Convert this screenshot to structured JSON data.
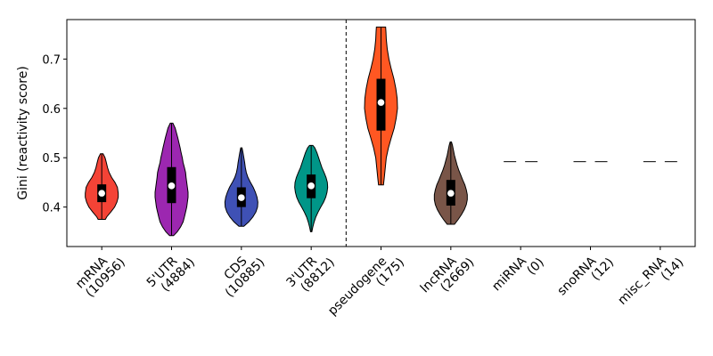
{
  "chart_data": {
    "type": "violin",
    "title": "",
    "xlabel": "",
    "ylabel": "Gini (reactivity score)",
    "ylim": [
      0.32,
      0.78
    ],
    "yticks": [
      0.4,
      0.5,
      0.6,
      0.7
    ],
    "ytick_labels": [
      "0.4",
      "0.5",
      "0.6",
      "0.7"
    ],
    "grid": false,
    "legend": "none",
    "separator_after_index": 3,
    "categories": [
      {
        "name": "mRNA",
        "count": "(10956)",
        "color": "#f44336",
        "kind": "violin",
        "min": 0.375,
        "q1": 0.41,
        "median": 0.428,
        "q3": 0.446,
        "max": 0.508,
        "profile": [
          [
            0.375,
            0.22
          ],
          [
            0.38,
            0.3
          ],
          [
            0.39,
            0.55
          ],
          [
            0.4,
            0.78
          ],
          [
            0.41,
            0.92
          ],
          [
            0.42,
            1.0
          ],
          [
            0.428,
            1.0
          ],
          [
            0.44,
            0.95
          ],
          [
            0.45,
            0.8
          ],
          [
            0.46,
            0.6
          ],
          [
            0.47,
            0.45
          ],
          [
            0.48,
            0.35
          ],
          [
            0.49,
            0.28
          ],
          [
            0.5,
            0.2
          ],
          [
            0.508,
            0.08
          ]
        ]
      },
      {
        "name": "5'UTR",
        "count": "(4884)",
        "color": "#9c27b0",
        "kind": "violin",
        "min": 0.342,
        "q1": 0.408,
        "median": 0.443,
        "q3": 0.481,
        "max": 0.57,
        "profile": [
          [
            0.342,
            0.12
          ],
          [
            0.35,
            0.35
          ],
          [
            0.36,
            0.55
          ],
          [
            0.37,
            0.7
          ],
          [
            0.38,
            0.78
          ],
          [
            0.39,
            0.85
          ],
          [
            0.4,
            0.92
          ],
          [
            0.41,
            0.96
          ],
          [
            0.42,
            1.0
          ],
          [
            0.43,
            1.0
          ],
          [
            0.44,
            0.96
          ],
          [
            0.45,
            0.92
          ],
          [
            0.46,
            0.88
          ],
          [
            0.47,
            0.85
          ],
          [
            0.48,
            0.78
          ],
          [
            0.49,
            0.7
          ],
          [
            0.5,
            0.65
          ],
          [
            0.51,
            0.58
          ],
          [
            0.52,
            0.52
          ],
          [
            0.53,
            0.45
          ],
          [
            0.54,
            0.38
          ],
          [
            0.55,
            0.3
          ],
          [
            0.56,
            0.22
          ],
          [
            0.57,
            0.08
          ]
        ]
      },
      {
        "name": "CDS",
        "count": "(10885)",
        "color": "#3f51b5",
        "kind": "violin",
        "min": 0.361,
        "q1": 0.4,
        "median": 0.419,
        "q3": 0.44,
        "max": 0.52,
        "profile": [
          [
            0.361,
            0.15
          ],
          [
            0.37,
            0.45
          ],
          [
            0.38,
            0.7
          ],
          [
            0.39,
            0.88
          ],
          [
            0.4,
            0.98
          ],
          [
            0.41,
            1.0
          ],
          [
            0.42,
            0.95
          ],
          [
            0.43,
            0.85
          ],
          [
            0.44,
            0.72
          ],
          [
            0.45,
            0.55
          ],
          [
            0.46,
            0.4
          ],
          [
            0.47,
            0.3
          ],
          [
            0.48,
            0.24
          ],
          [
            0.49,
            0.2
          ],
          [
            0.5,
            0.15
          ],
          [
            0.51,
            0.1
          ],
          [
            0.52,
            0.04
          ]
        ]
      },
      {
        "name": "3'UTR",
        "count": "(8812)",
        "color": "#009688",
        "kind": "violin",
        "min": 0.35,
        "q1": 0.418,
        "median": 0.443,
        "q3": 0.466,
        "max": 0.525,
        "profile": [
          [
            0.35,
            0.04
          ],
          [
            0.36,
            0.1
          ],
          [
            0.37,
            0.18
          ],
          [
            0.38,
            0.28
          ],
          [
            0.39,
            0.42
          ],
          [
            0.4,
            0.58
          ],
          [
            0.41,
            0.75
          ],
          [
            0.42,
            0.88
          ],
          [
            0.43,
            0.96
          ],
          [
            0.44,
            1.0
          ],
          [
            0.45,
            0.98
          ],
          [
            0.46,
            0.9
          ],
          [
            0.47,
            0.78
          ],
          [
            0.48,
            0.65
          ],
          [
            0.49,
            0.55
          ],
          [
            0.5,
            0.45
          ],
          [
            0.51,
            0.35
          ],
          [
            0.52,
            0.22
          ],
          [
            0.525,
            0.1
          ]
        ]
      },
      {
        "name": "pseudogene",
        "count": "(175)",
        "color": "#ff5722",
        "kind": "violin",
        "min": 0.445,
        "q1": 0.555,
        "median": 0.612,
        "q3": 0.66,
        "max": 0.765,
        "profile": [
          [
            0.445,
            0.15
          ],
          [
            0.46,
            0.2
          ],
          [
            0.48,
            0.26
          ],
          [
            0.5,
            0.32
          ],
          [
            0.52,
            0.45
          ],
          [
            0.54,
            0.62
          ],
          [
            0.56,
            0.8
          ],
          [
            0.58,
            0.92
          ],
          [
            0.6,
            1.0
          ],
          [
            0.62,
            0.98
          ],
          [
            0.64,
            0.9
          ],
          [
            0.66,
            0.78
          ],
          [
            0.68,
            0.62
          ],
          [
            0.7,
            0.48
          ],
          [
            0.72,
            0.38
          ],
          [
            0.74,
            0.32
          ],
          [
            0.755,
            0.3
          ],
          [
            0.765,
            0.28
          ]
        ]
      },
      {
        "name": "lncRNA",
        "count": "(2669)",
        "color": "#795548",
        "kind": "violin",
        "min": 0.365,
        "q1": 0.403,
        "median": 0.428,
        "q3": 0.455,
        "max": 0.532,
        "profile": [
          [
            0.365,
            0.22
          ],
          [
            0.375,
            0.45
          ],
          [
            0.385,
            0.65
          ],
          [
            0.395,
            0.82
          ],
          [
            0.405,
            0.94
          ],
          [
            0.415,
            1.0
          ],
          [
            0.425,
            1.0
          ],
          [
            0.435,
            0.94
          ],
          [
            0.445,
            0.85
          ],
          [
            0.455,
            0.72
          ],
          [
            0.465,
            0.6
          ],
          [
            0.475,
            0.48
          ],
          [
            0.485,
            0.38
          ],
          [
            0.495,
            0.3
          ],
          [
            0.505,
            0.22
          ],
          [
            0.515,
            0.16
          ],
          [
            0.525,
            0.1
          ],
          [
            0.532,
            0.04
          ]
        ]
      },
      {
        "name": "miRNA",
        "count": "(0)",
        "color": "#000000",
        "kind": "empty",
        "placeholder_y": 0.492
      },
      {
        "name": "snoRNA",
        "count": "(12)",
        "color": "#000000",
        "kind": "empty",
        "placeholder_y": 0.492
      },
      {
        "name": "misc_RNA",
        "count": "(14)",
        "color": "#000000",
        "kind": "empty",
        "placeholder_y": 0.492
      }
    ]
  }
}
